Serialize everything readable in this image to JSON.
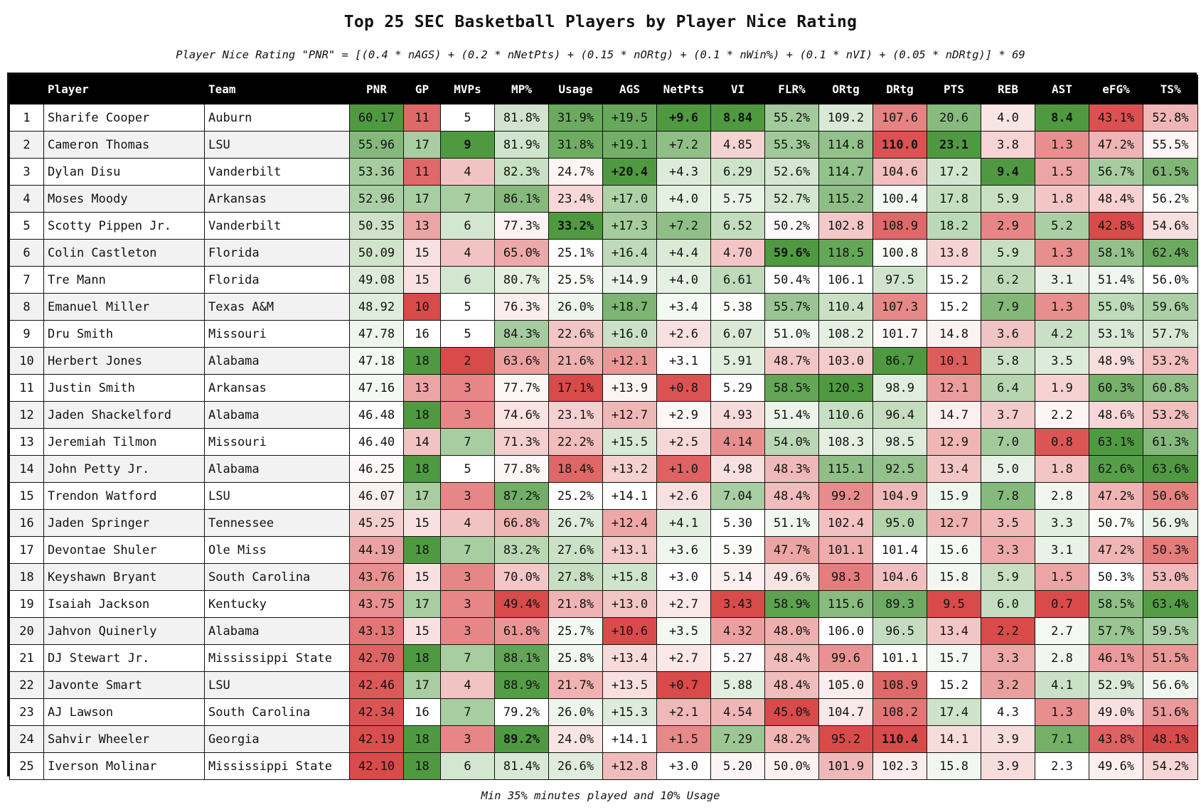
{
  "title": "Top 25 SEC Basketball Players by Player Nice Rating",
  "subtitle": "Player Nice Rating \"PNR\" = [(0.4 * nAGS) + (0.2 * nNetPts) + (0.15 * nORtg) + (0.1 * nWin%) + (0.1 * nVI) + (0.05 * nDRtg)] * 69",
  "footer": "Min 35% minutes played and 10% Usage",
  "columns": [
    "",
    "Player",
    "Team",
    "PNR",
    "GP",
    "MVPs",
    "MP%",
    "Usage",
    "AGS",
    "NetPts",
    "VI",
    "FLR%",
    "ORtg",
    "DRtg",
    "PTS",
    "REB",
    "AST",
    "eFG%",
    "TS%"
  ],
  "rows": [
    [
      "1",
      "Sharife Cooper",
      "Auburn",
      "60.17",
      "11",
      "5",
      "81.8%",
      "31.9%",
      "+19.5",
      "+9.6",
      "8.84",
      "55.2%",
      "109.2",
      "107.6",
      "20.6",
      "4.0",
      "8.4",
      "43.1%",
      "52.8%"
    ],
    [
      "2",
      "Cameron Thomas",
      "LSU",
      "55.96",
      "17",
      "9",
      "81.9%",
      "31.8%",
      "+19.1",
      "+7.2",
      "4.85",
      "55.3%",
      "114.8",
      "110.0",
      "23.1",
      "3.8",
      "1.3",
      "47.2%",
      "55.5%"
    ],
    [
      "3",
      "Dylan Disu",
      "Vanderbilt",
      "53.36",
      "11",
      "4",
      "82.3%",
      "24.7%",
      "+20.4",
      "+4.3",
      "6.29",
      "52.6%",
      "114.7",
      "104.6",
      "17.2",
      "9.4",
      "1.5",
      "56.7%",
      "61.5%"
    ],
    [
      "4",
      "Moses Moody",
      "Arkansas",
      "52.96",
      "17",
      "7",
      "86.1%",
      "23.4%",
      "+17.0",
      "+4.0",
      "5.75",
      "52.7%",
      "115.2",
      "100.4",
      "17.8",
      "5.9",
      "1.8",
      "48.4%",
      "56.2%"
    ],
    [
      "5",
      "Scotty Pippen Jr.",
      "Vanderbilt",
      "50.35",
      "13",
      "6",
      "77.3%",
      "33.2%",
      "+17.3",
      "+7.2",
      "6.52",
      "50.2%",
      "102.8",
      "108.9",
      "18.2",
      "2.9",
      "5.2",
      "42.8%",
      "54.6%"
    ],
    [
      "6",
      "Colin Castleton",
      "Florida",
      "50.09",
      "15",
      "4",
      "65.0%",
      "25.1%",
      "+16.4",
      "+4.4",
      "4.70",
      "59.6%",
      "118.5",
      "100.8",
      "13.8",
      "5.9",
      "1.3",
      "58.1%",
      "62.4%"
    ],
    [
      "7",
      "Tre Mann",
      "Florida",
      "49.08",
      "15",
      "6",
      "80.7%",
      "25.5%",
      "+14.9",
      "+4.0",
      "6.61",
      "50.4%",
      "106.1",
      "97.5",
      "15.2",
      "6.2",
      "3.1",
      "51.4%",
      "56.0%"
    ],
    [
      "8",
      "Emanuel Miller",
      "Texas A&M",
      "48.92",
      "10",
      "5",
      "76.3%",
      "26.0%",
      "+18.7",
      "+3.4",
      "5.38",
      "55.7%",
      "110.4",
      "107.3",
      "15.2",
      "7.9",
      "1.3",
      "55.0%",
      "59.6%"
    ],
    [
      "9",
      "Dru Smith",
      "Missouri",
      "47.78",
      "16",
      "5",
      "84.3%",
      "22.6%",
      "+16.0",
      "+2.6",
      "6.07",
      "51.0%",
      "108.2",
      "101.7",
      "14.8",
      "3.6",
      "4.2",
      "53.1%",
      "57.7%"
    ],
    [
      "10",
      "Herbert Jones",
      "Alabama",
      "47.18",
      "18",
      "2",
      "63.6%",
      "21.6%",
      "+12.1",
      "+3.1",
      "5.91",
      "48.7%",
      "103.0",
      "86.7",
      "10.1",
      "5.8",
      "3.5",
      "48.9%",
      "53.2%"
    ],
    [
      "11",
      "Justin Smith",
      "Arkansas",
      "47.16",
      "13",
      "3",
      "77.7%",
      "17.1%",
      "+13.9",
      "+0.8",
      "5.29",
      "58.5%",
      "120.3",
      "98.9",
      "12.1",
      "6.4",
      "1.9",
      "60.3%",
      "60.8%"
    ],
    [
      "12",
      "Jaden Shackelford",
      "Alabama",
      "46.48",
      "18",
      "3",
      "74.6%",
      "23.1%",
      "+12.7",
      "+2.9",
      "4.93",
      "51.4%",
      "110.6",
      "96.4",
      "14.7",
      "3.7",
      "2.2",
      "48.6%",
      "53.2%"
    ],
    [
      "13",
      "Jeremiah Tilmon",
      "Missouri",
      "46.40",
      "14",
      "7",
      "71.3%",
      "22.2%",
      "+15.5",
      "+2.5",
      "4.14",
      "54.0%",
      "108.3",
      "98.5",
      "12.9",
      "7.0",
      "0.8",
      "63.1%",
      "61.3%"
    ],
    [
      "14",
      "John Petty Jr.",
      "Alabama",
      "46.25",
      "18",
      "5",
      "77.8%",
      "18.4%",
      "+13.2",
      "+1.0",
      "4.98",
      "48.3%",
      "115.1",
      "92.5",
      "13.4",
      "5.0",
      "1.8",
      "62.6%",
      "63.6%"
    ],
    [
      "15",
      "Trendon Watford",
      "LSU",
      "46.07",
      "17",
      "3",
      "87.2%",
      "25.2%",
      "+14.1",
      "+2.6",
      "7.04",
      "48.4%",
      "99.2",
      "104.9",
      "15.9",
      "7.8",
      "2.8",
      "47.2%",
      "50.6%"
    ],
    [
      "16",
      "Jaden Springer",
      "Tennessee",
      "45.25",
      "15",
      "4",
      "66.8%",
      "26.7%",
      "+12.4",
      "+4.1",
      "5.30",
      "51.1%",
      "102.4",
      "95.0",
      "12.7",
      "3.5",
      "3.3",
      "50.7%",
      "56.9%"
    ],
    [
      "17",
      "Devontae Shuler",
      "Ole Miss",
      "44.19",
      "18",
      "7",
      "83.2%",
      "27.6%",
      "+13.1",
      "+3.6",
      "5.39",
      "47.7%",
      "101.1",
      "101.4",
      "15.6",
      "3.3",
      "3.1",
      "47.2%",
      "50.3%"
    ],
    [
      "18",
      "Keyshawn Bryant",
      "South Carolina",
      "43.76",
      "15",
      "3",
      "70.0%",
      "27.8%",
      "+15.8",
      "+3.0",
      "5.14",
      "49.6%",
      "98.3",
      "104.6",
      "15.8",
      "5.9",
      "1.5",
      "50.3%",
      "53.0%"
    ],
    [
      "19",
      "Isaiah Jackson",
      "Kentucky",
      "43.75",
      "17",
      "3",
      "49.4%",
      "21.8%",
      "+13.0",
      "+2.7",
      "3.43",
      "58.9%",
      "115.6",
      "89.3",
      "9.5",
      "6.0",
      "0.7",
      "58.5%",
      "63.4%"
    ],
    [
      "20",
      "Jahvon Quinerly",
      "Alabama",
      "43.13",
      "15",
      "3",
      "61.8%",
      "25.7%",
      "+10.6",
      "+3.5",
      "4.32",
      "48.0%",
      "106.0",
      "96.5",
      "13.4",
      "2.2",
      "2.7",
      "57.7%",
      "59.5%"
    ],
    [
      "21",
      "DJ Stewart Jr.",
      "Mississippi State",
      "42.70",
      "18",
      "7",
      "88.1%",
      "25.8%",
      "+13.4",
      "+2.7",
      "5.27",
      "48.4%",
      "99.6",
      "101.1",
      "15.7",
      "3.3",
      "2.8",
      "46.1%",
      "51.5%"
    ],
    [
      "22",
      "Javonte Smart",
      "LSU",
      "42.46",
      "17",
      "4",
      "88.9%",
      "21.7%",
      "+13.5",
      "+0.7",
      "5.88",
      "48.4%",
      "105.0",
      "108.9",
      "15.2",
      "3.2",
      "4.1",
      "52.9%",
      "56.6%"
    ],
    [
      "23",
      "AJ Lawson",
      "South Carolina",
      "42.34",
      "16",
      "7",
      "79.2%",
      "26.0%",
      "+15.3",
      "+2.1",
      "4.54",
      "45.0%",
      "104.7",
      "108.2",
      "17.4",
      "4.3",
      "1.3",
      "49.0%",
      "51.6%"
    ],
    [
      "24",
      "Sahvir Wheeler",
      "Georgia",
      "42.19",
      "18",
      "3",
      "89.2%",
      "24.0%",
      "+14.1",
      "+1.5",
      "7.29",
      "48.2%",
      "95.2",
      "110.4",
      "14.1",
      "3.9",
      "7.1",
      "43.8%",
      "48.1%"
    ],
    [
      "25",
      "Iverson Molinar",
      "Mississippi State",
      "42.10",
      "18",
      "6",
      "81.4%",
      "26.6%",
      "+12.8",
      "+3.0",
      "5.20",
      "50.0%",
      "101.9",
      "102.3",
      "15.8",
      "3.9",
      "2.3",
      "49.6%",
      "54.2%"
    ]
  ],
  "bold_cells": [
    {
      "row": 0,
      "col": 9
    },
    {
      "row": 0,
      "col": 10
    },
    {
      "row": 0,
      "col": 16
    },
    {
      "row": 1,
      "col": 5
    },
    {
      "row": 1,
      "col": 13
    },
    {
      "row": 1,
      "col": 14
    },
    {
      "row": 2,
      "col": 8
    },
    {
      "row": 2,
      "col": 15
    },
    {
      "row": 4,
      "col": 7
    },
    {
      "row": 5,
      "col": 11
    },
    {
      "row": 23,
      "col": 6
    },
    {
      "row": 23,
      "col": 13
    }
  ],
  "color_scale": {
    "low": "#d94a4a",
    "mid": "#ffffff",
    "high": "#4f9a41"
  },
  "inverted_columns": [
    13
  ],
  "uncolored_columns": [
    0,
    1,
    2
  ]
}
